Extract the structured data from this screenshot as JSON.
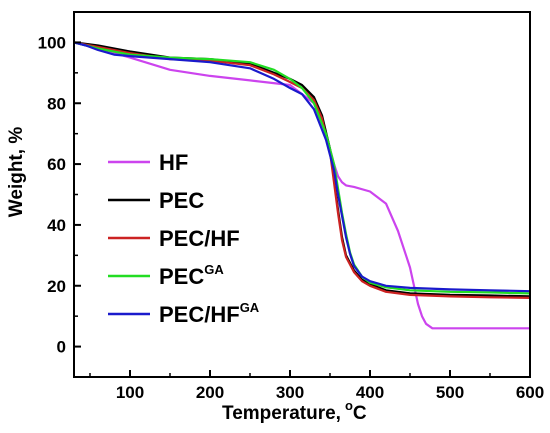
{
  "chart_data": {
    "type": "line",
    "xlabel": "Temperature,",
    "xlabel_unit_sup": "o",
    "xlabel_unit": "C",
    "ylabel": "Weight, %",
    "xlim": [
      30,
      600
    ],
    "ylim": [
      -10,
      110
    ],
    "xticks": [
      "100",
      "200",
      "300",
      "400",
      "500",
      "600"
    ],
    "yticks": [
      "0",
      "20",
      "40",
      "60",
      "80",
      "100"
    ],
    "legend_position": "left",
    "series": [
      {
        "name": "HF",
        "name_sup": "",
        "color": "#cc44ee",
        "x": [
          30,
          60,
          100,
          150,
          200,
          250,
          300,
          330,
          345,
          355,
          360,
          365,
          370,
          380,
          400,
          420,
          435,
          445,
          450,
          455,
          460,
          465,
          470,
          478,
          490,
          550,
          600
        ],
        "y": [
          100,
          98,
          95,
          91,
          89,
          87.5,
          86,
          80,
          70,
          60,
          56,
          54,
          53,
          52.5,
          51,
          47,
          38,
          30,
          26,
          20,
          14,
          10,
          7.5,
          6,
          6,
          6,
          6
        ]
      },
      {
        "name": "PEC",
        "name_sup": "",
        "color": "#000000",
        "x": [
          30,
          60,
          100,
          150,
          200,
          250,
          280,
          300,
          315,
          330,
          340,
          350,
          355,
          360,
          365,
          370,
          380,
          390,
          400,
          420,
          450,
          500,
          550,
          600
        ],
        "y": [
          100,
          99,
          97,
          95,
          94.5,
          93,
          90,
          88,
          86,
          82,
          76,
          65,
          55,
          45,
          36,
          30,
          25,
          22,
          20.5,
          18.5,
          17.5,
          17,
          16.8,
          16.5
        ]
      },
      {
        "name": "PEC/HF",
        "name_sup": "",
        "color": "#cc2222",
        "x": [
          30,
          60,
          100,
          150,
          200,
          250,
          280,
          300,
          315,
          330,
          340,
          350,
          355,
          360,
          365,
          370,
          380,
          390,
          400,
          420,
          450,
          500,
          550,
          600
        ],
        "y": [
          100,
          98.5,
          96.5,
          94.5,
          94,
          92.5,
          89.5,
          87,
          85,
          81,
          75,
          64,
          54,
          44,
          35,
          29.5,
          24.5,
          21.5,
          20,
          18,
          17,
          16.5,
          16.2,
          16
        ]
      },
      {
        "name": "PEC",
        "name_sup": "GA",
        "color": "#22dd22",
        "x": [
          30,
          60,
          100,
          150,
          200,
          250,
          280,
          300,
          315,
          330,
          345,
          355,
          360,
          365,
          370,
          375,
          380,
          390,
          400,
          420,
          450,
          500,
          550,
          600
        ],
        "y": [
          100,
          98,
          96,
          95,
          94.5,
          93.5,
          91,
          88,
          85,
          80,
          70,
          60,
          52,
          44,
          37,
          31,
          27,
          23,
          21,
          19.5,
          18.5,
          18,
          17.8,
          17.5
        ]
      },
      {
        "name": "PEC/HF",
        "name_sup": "GA",
        "color": "#1a1acc",
        "x": [
          30,
          45,
          60,
          80,
          100,
          150,
          200,
          250,
          280,
          300,
          315,
          330,
          345,
          355,
          360,
          365,
          370,
          375,
          380,
          390,
          400,
          420,
          450,
          500,
          550,
          600
        ],
        "y": [
          100,
          99,
          97.5,
          96,
          95.5,
          94.5,
          93.5,
          91.5,
          88,
          85,
          83,
          78,
          68,
          58,
          50,
          43,
          36,
          30.5,
          26.5,
          23,
          21.5,
          20,
          19.3,
          18.8,
          18.5,
          18.2
        ]
      }
    ]
  }
}
